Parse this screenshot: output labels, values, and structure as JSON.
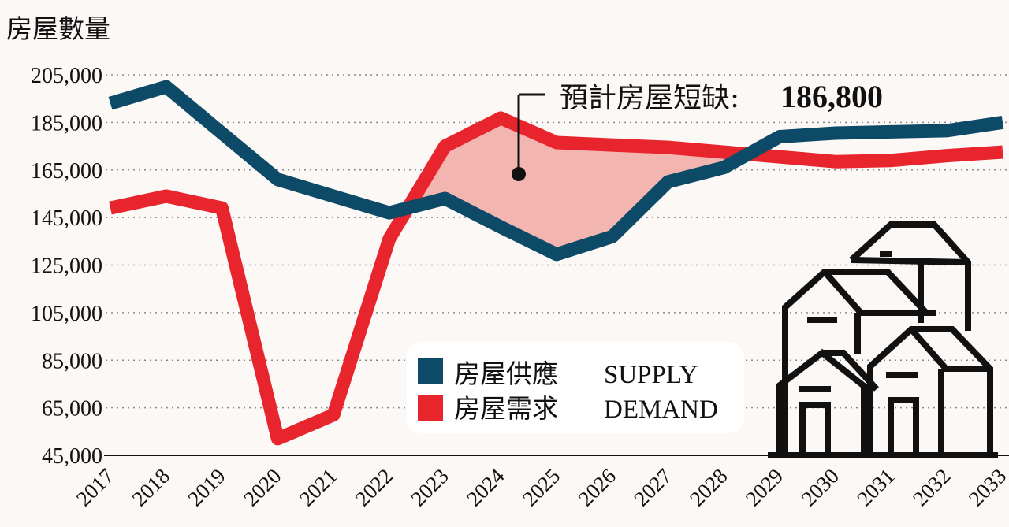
{
  "chart_data": {
    "type": "line",
    "title": "房屋數量",
    "ylim": [
      45000,
      205000
    ],
    "yticks": [
      45000,
      65000,
      85000,
      105000,
      125000,
      145000,
      165000,
      185000,
      205000
    ],
    "ytick_labels": [
      "45,000",
      "65,000",
      "85,000",
      "105,000",
      "125,000",
      "145,000",
      "165,000",
      "185,000",
      "205,000"
    ],
    "x": [
      "2017",
      "2018",
      "2019",
      "2020",
      "2021",
      "2022",
      "2023",
      "2024",
      "2025",
      "2026",
      "2027",
      "2028",
      "2029",
      "2030",
      "2031",
      "2032",
      "2033"
    ],
    "grid": true,
    "legend_position": "bottom-center",
    "series": [
      {
        "name": "房屋供應 SUPPLY",
        "label_zh": "房屋供應",
        "label_en": "SUPPLY",
        "color": "#0d4a68",
        "values": [
          193000,
          200000,
          180500,
          161000,
          154000,
          147000,
          153000,
          141000,
          129500,
          137000,
          160000,
          166000,
          179000,
          180500,
          181000,
          181500,
          185000
        ]
      },
      {
        "name": "房屋需求 DEMAND",
        "label_zh": "房屋需求",
        "label_en": "DEMAND",
        "color": "#e8242d",
        "values": [
          149000,
          154000,
          149000,
          52000,
          62000,
          136000,
          175000,
          186800,
          176500,
          175500,
          174500,
          172500,
          170500,
          168500,
          169000,
          171000,
          172500
        ]
      }
    ],
    "annotation": {
      "label": "預計房屋短缺:",
      "value": "186,800",
      "shaded_region": "demand above supply",
      "shade_color": "#f3b5b0"
    }
  }
}
